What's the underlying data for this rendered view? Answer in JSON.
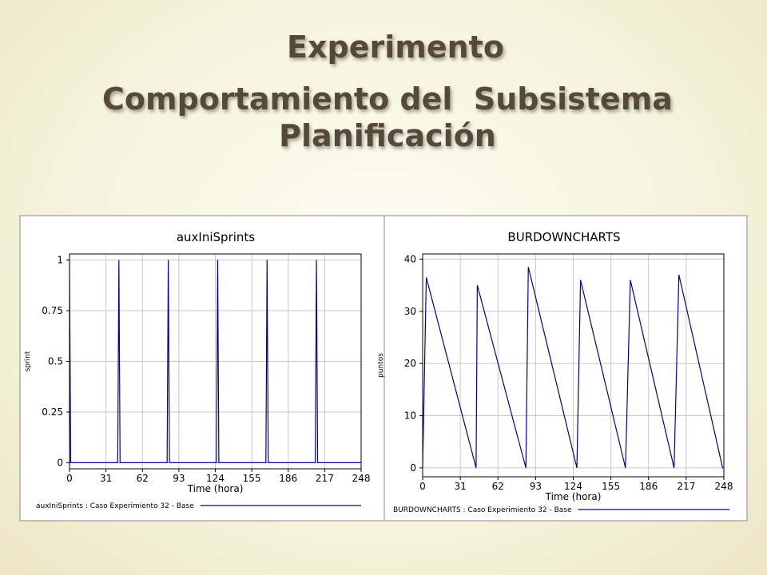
{
  "slide": {
    "title": [
      "Experimento",
      "Comportamiento del  Subsistema",
      "Planificación"
    ]
  },
  "chart_data": [
    {
      "type": "line",
      "title": "auxIniSprints",
      "xlabel": "Time (hora)",
      "ylabel": "sprint",
      "x": [
        0,
        1,
        41,
        42,
        43,
        83,
        84,
        85,
        125,
        126,
        127,
        167,
        168,
        169,
        209,
        210,
        211,
        248
      ],
      "series": [
        {
          "name": "auxIniSprints : Caso Experimiento 32 - Base",
          "color": "#0000a0",
          "values": [
            1,
            0,
            0,
            1,
            0,
            0,
            1,
            0,
            0,
            1,
            0,
            0,
            1,
            0,
            0,
            1,
            0,
            0
          ]
        }
      ],
      "xlim": [
        0,
        248
      ],
      "xticks": [
        0,
        31,
        62,
        93,
        124,
        155,
        186,
        217,
        248
      ],
      "ylim": [
        -0.03,
        1.03
      ],
      "yticks": [
        0,
        0.25,
        0.5,
        0.75,
        1
      ],
      "grid": true
    },
    {
      "type": "line",
      "title": "BURDOWNCHARTS",
      "xlabel": "Time (hora)",
      "ylabel": "puntos",
      "x": [
        0,
        3,
        44,
        45,
        85,
        87,
        127,
        130,
        167,
        171,
        207,
        211,
        247,
        248
      ],
      "series": [
        {
          "name": "BURDOWNCHARTS : Caso Experimiento 32 - Base",
          "color": "#0000a0",
          "values": [
            0,
            36.5,
            0,
            35,
            0,
            38.5,
            0,
            36,
            0,
            36,
            0,
            37,
            0,
            0
          ]
        }
      ],
      "xlim": [
        0,
        248
      ],
      "xticks": [
        0,
        31,
        62,
        93,
        124,
        155,
        186,
        217,
        248
      ],
      "ylim": [
        -1.7,
        41
      ],
      "yticks": [
        0,
        10,
        20,
        30,
        40
      ],
      "grid": true
    }
  ]
}
